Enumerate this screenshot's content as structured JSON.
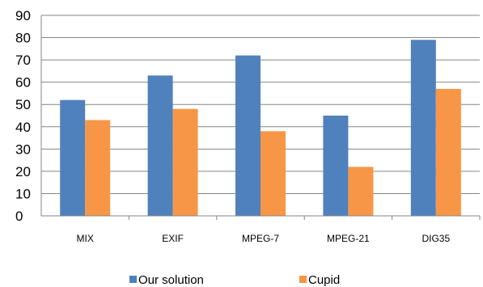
{
  "chart_data": {
    "type": "bar",
    "categories": [
      "MIX",
      "EXIF",
      "MPEG-7",
      "MPEG-21",
      "DIG35"
    ],
    "series": [
      {
        "name": "Our solution",
        "values": [
          52,
          63,
          72,
          45,
          79
        ],
        "color": "#4f81bd"
      },
      {
        "name": "Cupid",
        "values": [
          43,
          48,
          38,
          22,
          57
        ],
        "color": "#f79646"
      }
    ],
    "ylim": [
      0,
      90
    ],
    "yticks": [
      0,
      10,
      20,
      30,
      40,
      50,
      60,
      70,
      80,
      90
    ],
    "grid": true,
    "legend_position": "bottom",
    "title": "",
    "xlabel": "",
    "ylabel": ""
  }
}
